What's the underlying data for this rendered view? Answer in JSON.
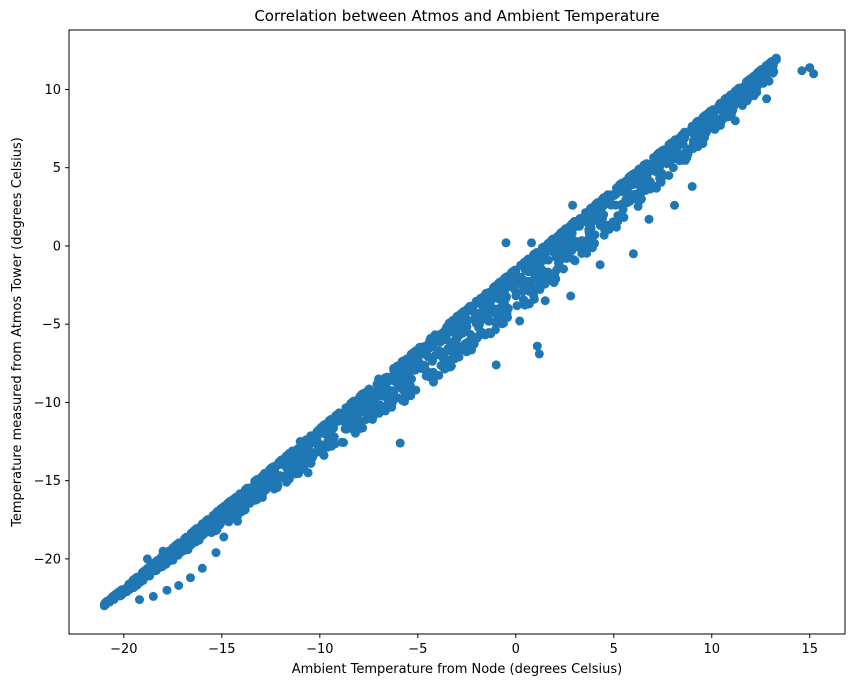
{
  "chart_data": {
    "type": "scatter",
    "title": "Correlation between Atmos and Ambient Temperature",
    "xlabel": "Ambient Temperature from Node (degrees Celsius)",
    "ylabel": "Temperature measured from Atmos Tower (degrees Celsius)",
    "xlim": [
      -22.8,
      16.8
    ],
    "ylim": [
      -24.8,
      13.8
    ],
    "x_ticks": [
      -20,
      -15,
      -10,
      -5,
      0,
      5,
      10,
      15
    ],
    "y_ticks": [
      -20,
      -15,
      -10,
      -5,
      0,
      5,
      10
    ],
    "x_tick_labels": [
      "−20",
      "−15",
      "−10",
      "−5",
      "0",
      "5",
      "10",
      "15"
    ],
    "y_tick_labels": [
      "−20",
      "−15",
      "−10",
      "−5",
      "0",
      "5",
      "10"
    ],
    "grid": false,
    "marker_color": "#1f77b4",
    "series": [
      {
        "name": "",
        "main_band": {
          "x_start": -21.0,
          "x_end": 13.3,
          "y_at_x_start": -23.0,
          "y_at_x_end": 11.9,
          "below_spread": [
            [
              -21,
              0.3
            ],
            [
              -15,
              1.2
            ],
            [
              -10,
              2.0
            ],
            [
              -5,
              2.8
            ],
            [
              0,
              3.0
            ],
            [
              5,
              2.6
            ],
            [
              10,
              1.6
            ],
            [
              13,
              1.2
            ]
          ]
        },
        "points": [
          [
            -19.2,
            -22.6
          ],
          [
            -18.5,
            -22.4
          ],
          [
            -17.8,
            -22.0
          ],
          [
            -17.2,
            -21.7
          ],
          [
            -16.6,
            -21.2
          ],
          [
            -16.0,
            -20.6
          ],
          [
            -15.3,
            -19.6
          ],
          [
            -14.9,
            -18.6
          ],
          [
            -14.2,
            -17.6
          ],
          [
            -13.2,
            -16.2
          ],
          [
            -10.6,
            -14.5
          ],
          [
            -9.4,
            -12.8
          ],
          [
            -8.2,
            -11.6
          ],
          [
            -7.4,
            -10.6
          ],
          [
            -5.9,
            -12.6
          ],
          [
            -4.2,
            -8.7
          ],
          [
            -2.9,
            -7.1
          ],
          [
            -1.0,
            -7.6
          ],
          [
            1.1,
            -6.4
          ],
          [
            1.2,
            -6.9
          ],
          [
            0.2,
            -4.8
          ],
          [
            1.5,
            -3.5
          ],
          [
            2.8,
            -3.2
          ],
          [
            4.3,
            -1.2
          ],
          [
            6.0,
            -0.5
          ],
          [
            6.8,
            1.7
          ],
          [
            8.1,
            2.6
          ],
          [
            9.0,
            3.8
          ],
          [
            10.6,
            8.2
          ],
          [
            12.8,
            9.4
          ],
          [
            11.2,
            8.0
          ],
          [
            14.6,
            11.2
          ],
          [
            15.2,
            11.0
          ],
          [
            15.0,
            11.4
          ],
          [
            13.3,
            11.9
          ],
          [
            -21.0,
            -23.0
          ],
          [
            -20.5,
            -22.5
          ],
          [
            7.3,
            4.8
          ],
          [
            2.9,
            2.6
          ],
          [
            0.8,
            0.2
          ],
          [
            -0.5,
            0.2
          ],
          [
            -3.0,
            -4.5
          ],
          [
            -7.0,
            -8.5
          ],
          [
            -11.0,
            -12.5
          ],
          [
            -13.0,
            -15.5
          ],
          [
            -16.0,
            -18.5
          ],
          [
            -18.0,
            -19.5
          ],
          [
            -18.8,
            -20.0
          ]
        ]
      }
    ]
  }
}
